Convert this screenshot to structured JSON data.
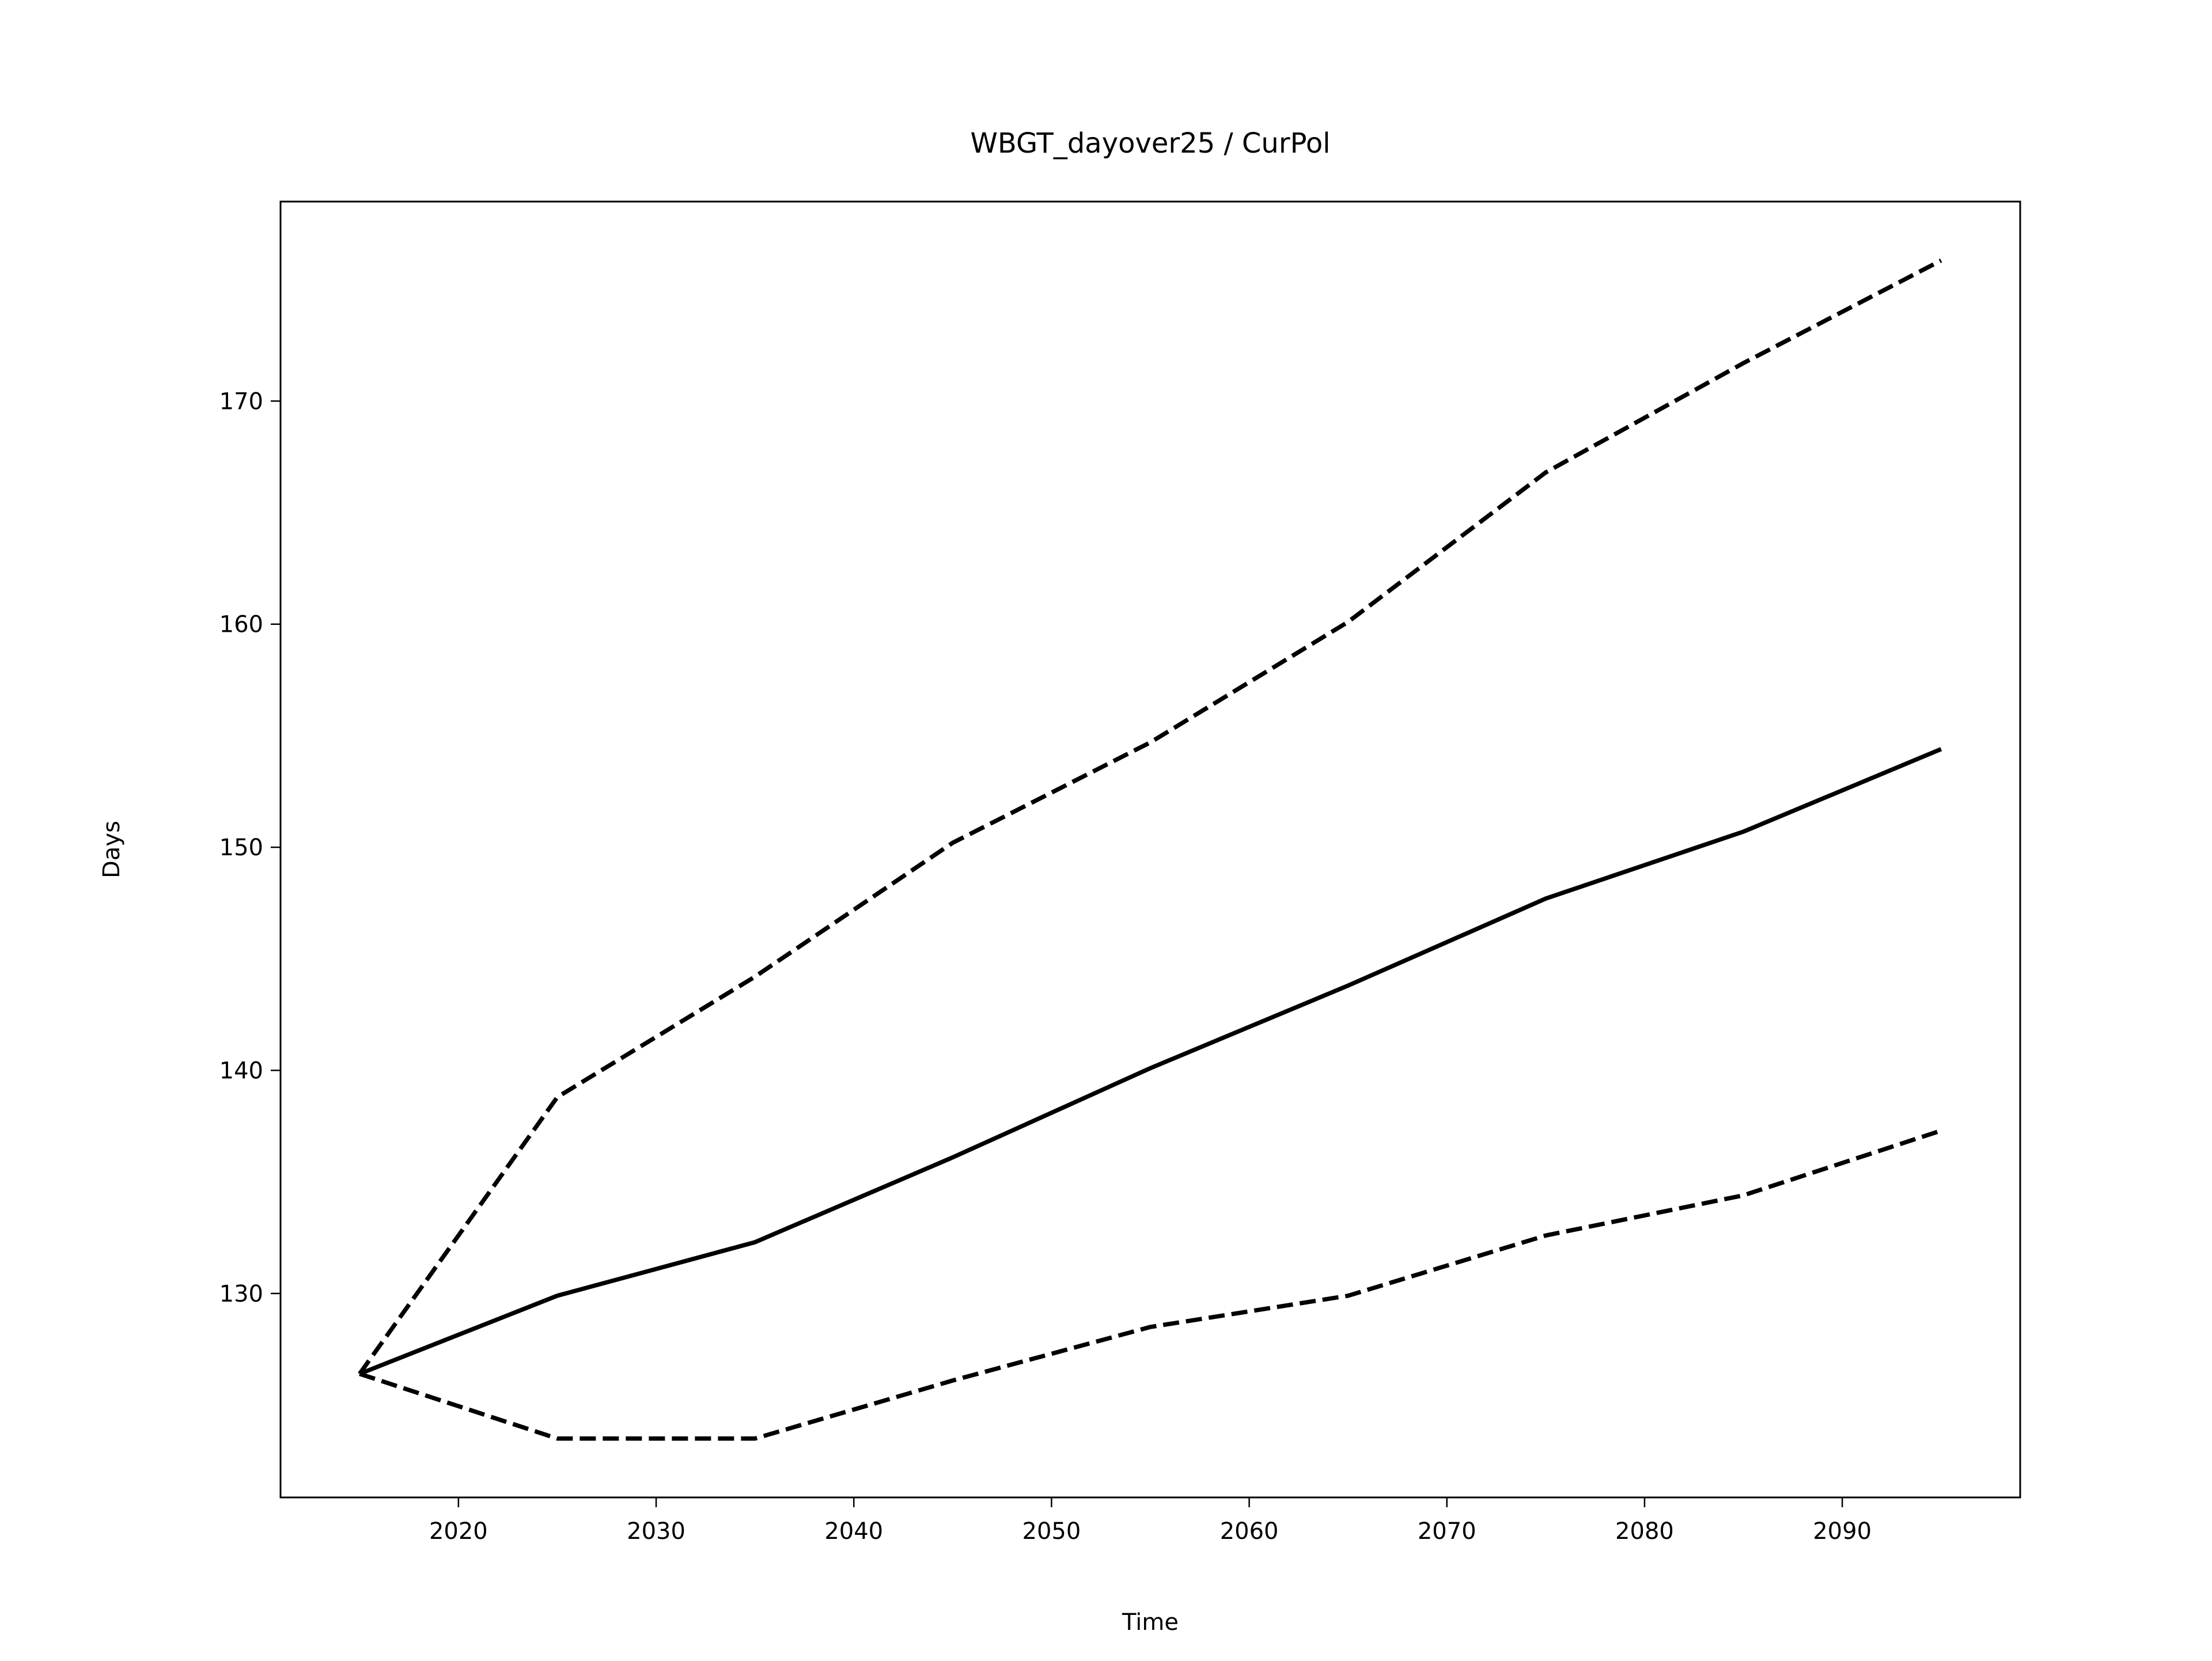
{
  "chart_data": {
    "type": "line",
    "title": "WBGT_dayover25 / CurPol",
    "xlabel": "Time",
    "ylabel": "Days",
    "x": [
      2015,
      2025,
      2035,
      2045,
      2055,
      2065,
      2075,
      2085,
      2095
    ],
    "series": [
      {
        "color": "#000000",
        "style": "solid",
        "values": [
          126.4,
          129.9,
          132.3,
          136.1,
          140.1,
          143.8,
          147.7,
          150.7,
          154.4
        ]
      },
      {
        "color": "#000000",
        "style": "dashed",
        "values": [
          126.4,
          138.8,
          144.2,
          150.2,
          154.7,
          160.1,
          166.8,
          171.7,
          176.3
        ]
      },
      {
        "color": "#000000",
        "style": "dashed",
        "values": [
          126.4,
          123.5,
          123.5,
          126.1,
          128.5,
          129.9,
          132.6,
          134.4,
          137.3
        ]
      }
    ],
    "xlim": [
      2011,
      2099
    ],
    "xticks": [
      2020,
      2030,
      2040,
      2050,
      2060,
      2070,
      2080,
      2090
    ],
    "ylim": [
      120.86,
      178.94
    ],
    "yticks": [
      130,
      140,
      150,
      160,
      170
    ],
    "grid": false
  }
}
